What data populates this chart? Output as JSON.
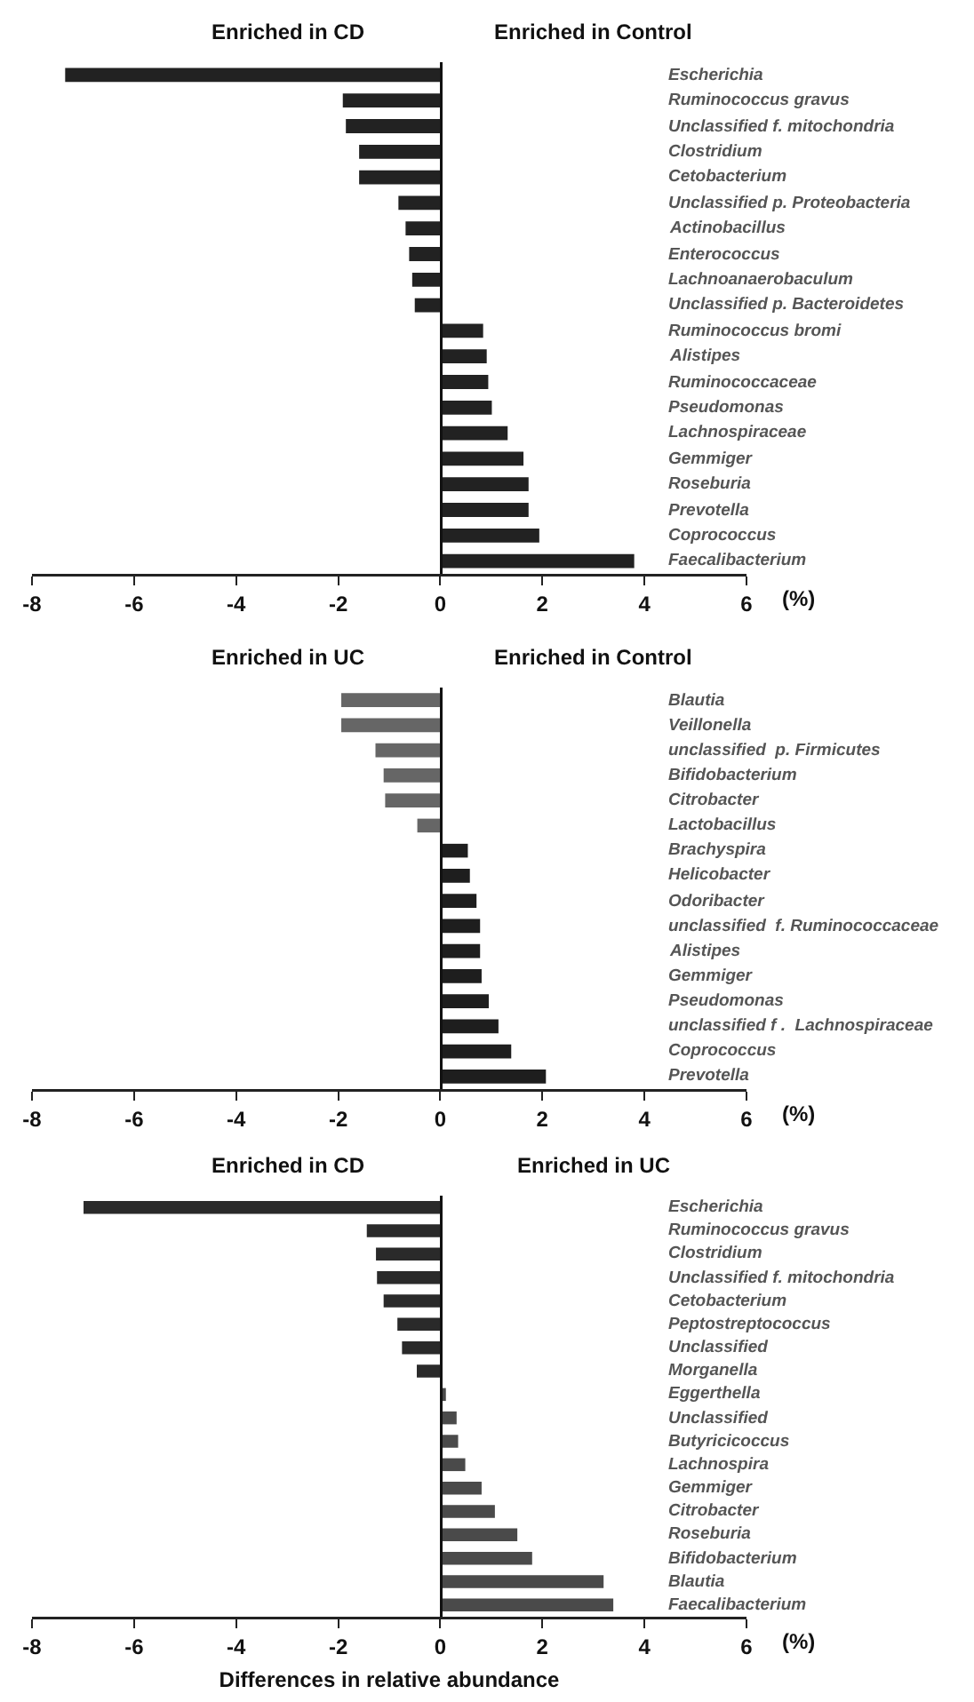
{
  "chart_data": [
    {
      "type": "bar",
      "orientation": "horizontal",
      "annotations": [
        "Enriched in CD",
        "Enriched in Control",
        "(%)"
      ],
      "categories": [
        "Escherichia",
        "Ruminococcus gravus",
        "Unclassified f. mitochondria",
        "Clostridium",
        "Cetobacterium",
        "Unclassified p. Proteobacteria",
        "Actinobacillus",
        "Enterococcus",
        "Lachnoanaerobaculum",
        "Unclassified p. Bacteroidetes",
        "Ruminococcus bromi",
        "Alistipes",
        "Ruminococcaceae",
        "Pseudomonas",
        "Lachnospiraceae",
        "Gemmiger",
        "Roseburia",
        "Prevotella",
        "Coprococcus",
        "Faecalibacterium"
      ],
      "values": [
        -7.35,
        -1.91,
        -1.85,
        -1.59,
        -1.59,
        -0.82,
        -0.68,
        -0.61,
        -0.55,
        -0.5,
        0.84,
        0.91,
        0.94,
        1.01,
        1.32,
        1.63,
        1.73,
        1.73,
        1.94,
        3.8
      ],
      "color": "#222222",
      "xlim": [
        -8,
        6
      ],
      "xticks": [
        -8,
        -6,
        -4,
        -2,
        0,
        2,
        4,
        6
      ]
    },
    {
      "type": "bar",
      "orientation": "horizontal",
      "annotations": [
        "Enriched in UC",
        "Enriched in Control",
        "(%)"
      ],
      "categories": [
        "Blautia",
        "Veillonella",
        "unclassified  p. Firmicutes",
        "Bifidobacterium",
        "Citrobacter",
        "Lactobacillus",
        "Brachyspira",
        "Helicobacter",
        "Odoribacter",
        "unclassified  f. Ruminococcaceae",
        "Alistipes",
        "Gemmiger",
        "Pseudomonas",
        "unclassified f .  Lachnospiraceae",
        "Coprococcus",
        "Prevotella"
      ],
      "values": [
        -1.94,
        -1.94,
        -1.27,
        -1.11,
        -1.08,
        -0.45,
        0.54,
        0.58,
        0.71,
        0.78,
        0.78,
        0.81,
        0.95,
        1.14,
        1.39,
        2.07
      ],
      "colors": [
        "#666666",
        "#666666",
        "#666666",
        "#666666",
        "#666666",
        "#666666",
        "#1e1e1e",
        "#1e1e1e",
        "#1e1e1e",
        "#1e1e1e",
        "#1e1e1e",
        "#1e1e1e",
        "#1e1e1e",
        "#1e1e1e",
        "#1e1e1e",
        "#1e1e1e"
      ],
      "xlim": [
        -8,
        6
      ],
      "xticks": [
        -8,
        -6,
        -4,
        -2,
        0,
        2,
        4,
        6
      ]
    },
    {
      "type": "bar",
      "orientation": "horizontal",
      "xlabel": "Differences in relative abundance",
      "annotations": [
        "Enriched in CD",
        "Enriched in UC",
        "(%)"
      ],
      "categories": [
        "Escherichia",
        "Ruminococcus gravus",
        "Clostridium",
        "Unclassified f. mitochondria",
        "Cetobacterium",
        "Peptostreptococcus",
        "Unclassified",
        "Morganella",
        "Eggerthella",
        "Unclassified",
        "Butyricicoccus",
        "Lachnospira",
        "Gemmiger",
        "Citrobacter",
        "Roseburia",
        "Bifidobacterium",
        "Blautia",
        "Faecalibacterium"
      ],
      "values": [
        -6.99,
        -1.44,
        -1.26,
        -1.24,
        -1.11,
        -0.84,
        -0.75,
        -0.46,
        0.11,
        0.32,
        0.35,
        0.49,
        0.81,
        1.07,
        1.51,
        1.8,
        3.2,
        3.39
      ],
      "colors": [
        "#2a2a2a",
        "#2a2a2a",
        "#2a2a2a",
        "#2a2a2a",
        "#2a2a2a",
        "#2a2a2a",
        "#2a2a2a",
        "#2a2a2a",
        "#4a4a4a",
        "#4a4a4a",
        "#4a4a4a",
        "#4a4a4a",
        "#4a4a4a",
        "#4a4a4a",
        "#4a4a4a",
        "#4a4a4a",
        "#4a4a4a",
        "#4a4a4a"
      ],
      "xlim": [
        -8,
        6
      ],
      "xticks": [
        -8,
        -6,
        -4,
        -2,
        0,
        2,
        4,
        6
      ]
    }
  ]
}
